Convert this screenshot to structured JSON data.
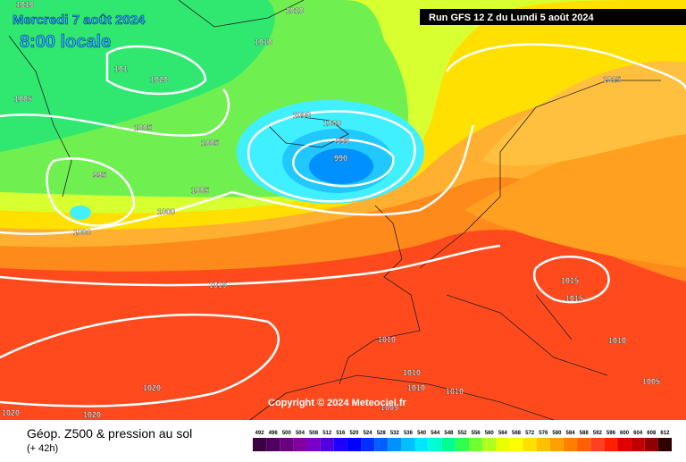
{
  "header": {
    "date": "Mercredi 7 août 2024",
    "time": "8:00 locale",
    "run": "Run GFS 12 Z du Lundi 5 août 2024"
  },
  "copyright": "Copyright © 2024 Meteociel.fr",
  "footer": {
    "title": "Géop. Z500 & pression au sol",
    "lead": "(+ 42h)"
  },
  "legend": {
    "labels": [
      "492",
      "496",
      "500",
      "504",
      "508",
      "512",
      "516",
      "520",
      "524",
      "528",
      "532",
      "536",
      "540",
      "544",
      "548",
      "552",
      "556",
      "560",
      "564",
      "568",
      "572",
      "576",
      "580",
      "584",
      "588",
      "592",
      "596",
      "600",
      "604",
      "608",
      "612"
    ],
    "colors": [
      "#3c0040",
      "#500060",
      "#6a0080",
      "#8000a0",
      "#7a00c8",
      "#5000e0",
      "#1e00ff",
      "#0000ff",
      "#0030ff",
      "#0060ff",
      "#0090ff",
      "#00c0ff",
      "#00e8ff",
      "#00ffd0",
      "#00ff90",
      "#30ff50",
      "#70ff30",
      "#b0ff20",
      "#e8ff00",
      "#ffff00",
      "#ffe000",
      "#ffc000",
      "#ffa000",
      "#ff8000",
      "#ff6000",
      "#ff4020",
      "#ff2000",
      "#e00000",
      "#c00000",
      "#900000",
      "#300000"
    ]
  },
  "isobar_labels": [
    "1010",
    "1010",
    "1010",
    "101",
    "1020",
    "1005",
    "1005",
    "1005",
    "1000",
    "1000",
    "995",
    "990",
    "995",
    "1005",
    "1000",
    "1000",
    "1015",
    "1015",
    "1015",
    "1015",
    "1010",
    "1010",
    "1010",
    "1010",
    "1010",
    "1005",
    "1020",
    "1020",
    "1020",
    "1005"
  ]
}
